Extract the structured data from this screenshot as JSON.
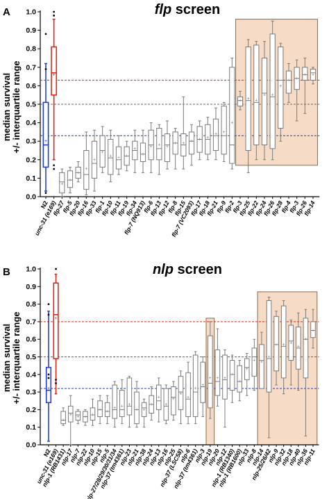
{
  "figure": {
    "ylabel_line1": "median survival",
    "ylabel_line2": "+/- interquartile range"
  },
  "colors": {
    "control_blue": "#1f3fd6",
    "control_red": "#e0261a",
    "box_gray": "#7a7a7a",
    "highlight_fill": "#f6dcc6",
    "highlight_stroke": "#8a6a4a",
    "ref_gray": "#666666"
  },
  "chart_data": [
    {
      "type": "box",
      "panel_label": "A",
      "title_italic": "flp",
      "title_rest": " screen",
      "ylim": [
        0,
        1.0
      ],
      "yticks": [
        "0.0",
        "0.1",
        "0.2",
        "0.3",
        "0.4",
        "0.5",
        "0.6",
        "0.7",
        "0.8",
        "0.9",
        "1.0"
      ],
      "reference_lines": {
        "red": 0.63,
        "gray": 0.5,
        "blue": 0.33
      },
      "highlight_range": [
        "flp-3",
        "flp-14"
      ],
      "boxes": [
        {
          "label": "N2",
          "italic": false,
          "color": "blue",
          "q1": 0.16,
          "med": 0.28,
          "q3": 0.51,
          "wlo": 0.03,
          "whi": 0.72,
          "mean": 0.3,
          "outliers": [
            0.88,
            0.69,
            0.02
          ]
        },
        {
          "label": "unc-31 (e169)",
          "italic": true,
          "color": "red",
          "q1": 0.55,
          "med": 0.67,
          "q3": 0.81,
          "wlo": 0.2,
          "whi": 0.96,
          "mean": 0.66,
          "outliers": [
            1.0,
            0.98,
            0.17,
            0.15
          ]
        },
        {
          "label": "flp-27",
          "italic": true,
          "q1": 0.02,
          "med": 0.08,
          "q3": 0.13,
          "wlo": 0.0,
          "whi": 0.15,
          "mean": 0.07
        },
        {
          "label": "flp-5",
          "italic": true,
          "q1": 0.05,
          "med": 0.09,
          "q3": 0.14,
          "wlo": 0.02,
          "whi": 0.16,
          "mean": 0.09
        },
        {
          "label": "flp-20",
          "italic": true,
          "q1": 0.1,
          "med": 0.13,
          "q3": 0.16,
          "wlo": 0.08,
          "whi": 0.19,
          "mean": 0.13
        },
        {
          "label": "flp-16",
          "italic": true,
          "q1": 0.04,
          "med": 0.12,
          "q3": 0.25,
          "wlo": 0.01,
          "whi": 0.35,
          "mean": 0.15
        },
        {
          "label": "flp-33",
          "italic": true,
          "q1": 0.1,
          "med": 0.18,
          "q3": 0.3,
          "wlo": 0.03,
          "whi": 0.36,
          "mean": 0.2
        },
        {
          "label": "flp-1",
          "italic": true,
          "q1": 0.16,
          "med": 0.25,
          "q3": 0.33,
          "wlo": 0.13,
          "whi": 0.38,
          "mean": 0.24
        },
        {
          "label": "flp-10",
          "italic": true,
          "q1": 0.12,
          "med": 0.21,
          "q3": 0.31,
          "wlo": 0.08,
          "whi": 0.36,
          "mean": 0.22
        },
        {
          "label": "flp-11",
          "italic": true,
          "q1": 0.15,
          "med": 0.2,
          "q3": 0.27,
          "wlo": 0.12,
          "whi": 0.33,
          "mean": 0.21
        },
        {
          "label": "flp-19",
          "italic": true,
          "q1": 0.17,
          "med": 0.22,
          "q3": 0.27,
          "wlo": 0.14,
          "whi": 0.3,
          "mean": 0.22
        },
        {
          "label": "flp-34",
          "italic": true,
          "q1": 0.2,
          "med": 0.25,
          "q3": 0.3,
          "wlo": 0.13,
          "whi": 0.36,
          "mean": 0.26
        },
        {
          "label": "flp-7 (NQ913)",
          "italic": true,
          "q1": 0.19,
          "med": 0.23,
          "q3": 0.29,
          "wlo": 0.13,
          "whi": 0.36,
          "mean": 0.23
        },
        {
          "label": "flp-6",
          "italic": true,
          "q1": 0.2,
          "med": 0.28,
          "q3": 0.36,
          "wlo": 0.13,
          "whi": 0.4,
          "mean": 0.27
        },
        {
          "label": "flp-13",
          "italic": true,
          "q1": 0.2,
          "med": 0.26,
          "q3": 0.37,
          "wlo": 0.12,
          "whi": 0.39,
          "mean": 0.28
        },
        {
          "label": "flp-12",
          "italic": true,
          "q1": 0.19,
          "med": 0.28,
          "q3": 0.34,
          "wlo": 0.15,
          "whi": 0.41,
          "mean": 0.27
        },
        {
          "label": "flp-8",
          "italic": true,
          "q1": 0.23,
          "med": 0.29,
          "q3": 0.35,
          "wlo": 0.15,
          "whi": 0.37,
          "mean": 0.29
        },
        {
          "label": "flp-15",
          "italic": true,
          "q1": 0.22,
          "med": 0.28,
          "q3": 0.34,
          "wlo": 0.15,
          "whi": 0.54,
          "mean": 0.29
        },
        {
          "label": "flp-7 (VC2093)",
          "italic": true,
          "q1": 0.23,
          "med": 0.3,
          "q3": 0.35,
          "wlo": 0.17,
          "whi": 0.39,
          "mean": 0.3
        },
        {
          "label": "flp-17",
          "italic": true,
          "q1": 0.24,
          "med": 0.31,
          "q3": 0.38,
          "wlo": 0.2,
          "whi": 0.41,
          "mean": 0.31
        },
        {
          "label": "flp-18",
          "italic": true,
          "q1": 0.23,
          "med": 0.31,
          "q3": 0.39,
          "wlo": 0.2,
          "whi": 0.43,
          "mean": 0.32
        },
        {
          "label": "flp-21",
          "italic": true,
          "q1": 0.25,
          "med": 0.33,
          "q3": 0.42,
          "wlo": 0.2,
          "whi": 0.48,
          "mean": 0.34
        },
        {
          "label": "flp-9",
          "italic": true,
          "q1": 0.23,
          "med": 0.33,
          "q3": 0.49,
          "wlo": 0.19,
          "whi": 0.51,
          "mean": 0.35
        },
        {
          "label": "flp-2",
          "italic": true,
          "q1": 0.18,
          "med": 0.28,
          "q3": 0.7,
          "wlo": 0.15,
          "whi": 0.75,
          "mean": 0.4
        },
        {
          "label": "flp-3",
          "italic": true,
          "q1": 0.49,
          "med": 0.52,
          "q3": 0.54,
          "wlo": 0.47,
          "whi": 0.57,
          "mean": 0.52
        },
        {
          "label": "flp-25",
          "italic": true,
          "q1": 0.25,
          "med": 0.52,
          "q3": 0.81,
          "wlo": 0.13,
          "whi": 0.85,
          "mean": 0.53
        },
        {
          "label": "flp-22",
          "italic": true,
          "q1": 0.28,
          "med": 0.51,
          "q3": 0.82,
          "wlo": 0.2,
          "whi": 0.84,
          "mean": 0.52
        },
        {
          "label": "flp-24",
          "italic": true,
          "q1": 0.28,
          "med": 0.56,
          "q3": 0.75,
          "wlo": 0.2,
          "whi": 0.84,
          "mean": 0.55
        },
        {
          "label": "flp-26",
          "italic": true,
          "q1": 0.26,
          "med": 0.54,
          "q3": 0.88,
          "wlo": 0.2,
          "whi": 0.95,
          "mean": 0.55
        },
        {
          "label": "flp-28",
          "italic": true,
          "q1": 0.37,
          "med": 0.63,
          "q3": 0.81,
          "wlo": 0.3,
          "whi": 0.83,
          "mean": 0.6
        },
        {
          "label": "flp-4",
          "italic": true,
          "q1": 0.56,
          "med": 0.63,
          "q3": 0.68,
          "wlo": 0.51,
          "whi": 0.72,
          "mean": 0.63
        },
        {
          "label": "flp-3",
          "italic": true,
          "q1": 0.58,
          "med": 0.64,
          "q3": 0.7,
          "wlo": 0.41,
          "whi": 0.74,
          "mean": 0.64
        },
        {
          "label": "flp-26",
          "italic": true,
          "q1": 0.63,
          "med": 0.66,
          "q3": 0.7,
          "wlo": 0.45,
          "whi": 0.75,
          "mean": 0.66
        },
        {
          "label": "flp-14",
          "italic": true,
          "q1": 0.63,
          "med": 0.67,
          "q3": 0.69,
          "wlo": 0.61,
          "whi": 0.7,
          "mean": 0.66
        }
      ]
    },
    {
      "type": "box",
      "panel_label": "B",
      "title_italic": "nlp",
      "title_rest": " screen",
      "ylim": [
        0,
        1.0
      ],
      "yticks": [
        "0.0",
        "0.1",
        "0.2",
        "0.3",
        "0.4",
        "0.5",
        "0.6",
        "0.7",
        "0.8",
        "0.9",
        "1.0"
      ],
      "reference_lines": {
        "red": 0.7,
        "gray": 0.5,
        "blue": 0.32
      },
      "highlight_groups": [
        [
          "nlp-19"
        ],
        [
          "nlp-14",
          "nlp-11"
        ]
      ],
      "boxes": [
        {
          "label": "N2",
          "italic": false,
          "color": "blue",
          "q1": 0.24,
          "med": 0.31,
          "q3": 0.44,
          "wlo": 0.02,
          "whi": 0.76,
          "mean": 0.32,
          "outliers": [
            0.8,
            0.74,
            0.4,
            0.38
          ]
        },
        {
          "label": "unc-31 (e169)",
          "italic": true,
          "color": "red",
          "q1": 0.49,
          "med": 0.74,
          "q3": 0.92,
          "wlo": 0.29,
          "whi": 0.97,
          "mean": 0.72,
          "outliers": [
            1.0,
            0.37,
            0.35
          ]
        },
        {
          "label": "nlp-1 (RB1431)",
          "italic": true,
          "q1": 0.12,
          "med": 0.14,
          "q3": 0.19,
          "wlo": 0.11,
          "whi": 0.21,
          "mean": 0.14
        },
        {
          "label": "nlp-17",
          "italic": true,
          "q1": 0.13,
          "med": 0.18,
          "q3": 0.22,
          "wlo": 0.0,
          "whi": 0.28,
          "mean": 0.17
        },
        {
          "label": "nlp-7",
          "italic": true,
          "q1": 0.14,
          "med": 0.17,
          "q3": 0.19,
          "wlo": 0.12,
          "whi": 0.2,
          "mean": 0.16
        },
        {
          "label": "nlp-22",
          "italic": true,
          "q1": 0.13,
          "med": 0.16,
          "q3": 0.19,
          "wlo": 0.11,
          "whi": 0.2,
          "mean": 0.16
        },
        {
          "label": "nlp-10",
          "italic": true,
          "q1": 0.14,
          "med": 0.17,
          "q3": 0.21,
          "wlo": 0.11,
          "whi": 0.26,
          "mean": 0.17
        },
        {
          "label": "nlp-15",
          "italic": true,
          "q1": 0.16,
          "med": 0.2,
          "q3": 0.25,
          "wlo": 0.12,
          "whi": 0.28,
          "mean": 0.2
        },
        {
          "label": "nlp-5",
          "italic": true,
          "q1": 0.16,
          "med": 0.19,
          "q3": 0.24,
          "wlo": 0.12,
          "whi": 0.28,
          "mean": 0.19
        },
        {
          "label": "nlp-27/28/29/30/31/34",
          "italic": true,
          "q1": 0.15,
          "med": 0.2,
          "q3": 0.34,
          "wlo": 0.1,
          "whi": 0.36,
          "mean": 0.21
        },
        {
          "label": "nlp-37 (tm4361)",
          "italic": true,
          "q1": 0.16,
          "med": 0.2,
          "q3": 0.31,
          "wlo": 0.12,
          "whi": 0.37,
          "mean": 0.22
        },
        {
          "label": "nlp-23",
          "italic": true,
          "q1": 0.17,
          "med": 0.22,
          "q3": 0.38,
          "wlo": 0.1,
          "whi": 0.39,
          "mean": 0.23
        },
        {
          "label": "nlp-21",
          "italic": true,
          "q1": 0.12,
          "med": 0.2,
          "q3": 0.3,
          "wlo": 0.1,
          "whi": 0.36,
          "mean": 0.2
        },
        {
          "label": "nlp-38",
          "italic": true,
          "q1": 0.16,
          "med": 0.21,
          "q3": 0.24,
          "wlo": 0.1,
          "whi": 0.26,
          "mean": 0.2
        },
        {
          "label": "nlp-24",
          "italic": true,
          "q1": 0.18,
          "med": 0.23,
          "q3": 0.28,
          "wlo": 0.14,
          "whi": 0.33,
          "mean": 0.23
        },
        {
          "label": "nlp-13",
          "italic": true,
          "q1": 0.2,
          "med": 0.25,
          "q3": 0.34,
          "wlo": 0.13,
          "whi": 0.38,
          "mean": 0.27
        },
        {
          "label": "nlp-16",
          "italic": true,
          "q1": 0.14,
          "med": 0.22,
          "q3": 0.32,
          "wlo": 0.12,
          "whi": 0.34,
          "mean": 0.23
        },
        {
          "label": "nlp-25",
          "italic": true,
          "q1": 0.17,
          "med": 0.27,
          "q3": 0.33,
          "wlo": 0.14,
          "whi": 0.36,
          "mean": 0.26
        },
        {
          "label": "nlp-37 (LSC58)",
          "italic": true,
          "q1": 0.2,
          "med": 0.3,
          "q3": 0.39,
          "wlo": 0.12,
          "whi": 0.42,
          "mean": 0.29
        },
        {
          "label": "nlp-6",
          "italic": true,
          "q1": 0.16,
          "med": 0.26,
          "q3": 0.41,
          "wlo": 0.12,
          "whi": 0.47,
          "mean": 0.27
        },
        {
          "label": "nlp-37 (tm4361)",
          "italic": true,
          "q1": 0.16,
          "med": 0.3,
          "q3": 0.51,
          "wlo": 0.12,
          "whi": 0.53,
          "mean": 0.32
        },
        {
          "label": "nlp-3",
          "italic": true,
          "q1": 0.24,
          "med": 0.33,
          "q3": 0.47,
          "wlo": 0.16,
          "whi": 0.5,
          "mean": 0.34
        },
        {
          "label": "nlp-19",
          "italic": true,
          "q1": 0.21,
          "med": 0.35,
          "q3": 0.62,
          "wlo": 0.15,
          "whi": 0.7,
          "mean": 0.38
        },
        {
          "label": "nlp-20",
          "italic": true,
          "q1": 0.28,
          "med": 0.36,
          "q3": 0.54,
          "wlo": 0.22,
          "whi": 0.66,
          "mean": 0.38
        },
        {
          "label": "nlp-12",
          "italic": true,
          "q1": 0.26,
          "med": 0.37,
          "q3": 0.51,
          "wlo": 0.1,
          "whi": 0.54,
          "mean": 0.38
        },
        {
          "label": "nlp-1 (RB1340)",
          "italic": true,
          "q1": 0.31,
          "med": 0.4,
          "q3": 0.48,
          "wlo": 0.24,
          "whi": 0.51,
          "mean": 0.4
        },
        {
          "label": "nlp-1 (RB1600)",
          "italic": true,
          "q1": 0.3,
          "med": 0.36,
          "q3": 0.45,
          "wlo": 0.25,
          "whi": 0.48,
          "mean": 0.36
        },
        {
          "label": "nlp-33",
          "italic": true,
          "q1": 0.37,
          "med": 0.44,
          "q3": 0.49,
          "wlo": 0.28,
          "whi": 0.52,
          "mean": 0.43
        },
        {
          "label": "nlp-8",
          "italic": true,
          "q1": 0.39,
          "med": 0.5,
          "q3": 0.55,
          "wlo": 0.31,
          "whi": 0.6,
          "mean": 0.48
        },
        {
          "label": "nlp-14",
          "italic": true,
          "q1": 0.32,
          "med": 0.48,
          "q3": 0.57,
          "wlo": 0.33,
          "whi": 0.64,
          "mean": 0.47
        },
        {
          "label": "nlp-25/26/42",
          "italic": true,
          "q1": 0.3,
          "med": 0.49,
          "q3": 0.82,
          "wlo": 0.04,
          "whi": 0.84,
          "mean": 0.5
        },
        {
          "label": "nlp-9",
          "italic": true,
          "q1": 0.42,
          "med": 0.57,
          "q3": 0.73,
          "wlo": 0.34,
          "whi": 0.76,
          "mean": 0.57
        },
        {
          "label": "nlp-32",
          "italic": true,
          "q1": 0.38,
          "med": 0.56,
          "q3": 0.79,
          "wlo": 0.29,
          "whi": 0.82,
          "mean": 0.57
        },
        {
          "label": "nlp-18",
          "italic": true,
          "q1": 0.48,
          "med": 0.59,
          "q3": 0.68,
          "wlo": 0.34,
          "whi": 0.71,
          "mean": 0.58
        },
        {
          "label": "nlp-40",
          "italic": true,
          "q1": 0.43,
          "med": 0.55,
          "q3": 0.67,
          "wlo": 0.31,
          "whi": 0.75,
          "mean": 0.56
        },
        {
          "label": "nlp-36",
          "italic": true,
          "q1": 0.38,
          "med": 0.6,
          "q3": 0.72,
          "wlo": 0.05,
          "whi": 0.77,
          "mean": 0.6
        },
        {
          "label": "nlp-11",
          "italic": true,
          "q1": 0.61,
          "med": 0.65,
          "q3": 0.7,
          "wlo": 0.55,
          "whi": 0.77,
          "mean": 0.65
        }
      ]
    }
  ]
}
